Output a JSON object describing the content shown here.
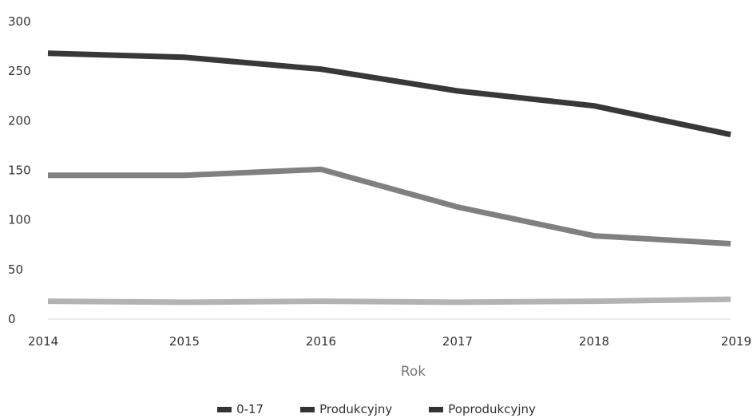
{
  "chart_data": {
    "type": "line",
    "x": [
      "2014",
      "2015",
      "2016",
      "2017",
      "2018",
      "2019"
    ],
    "xlabel": "Rok",
    "ylabel": "",
    "title": "",
    "ylim": [
      0,
      300
    ],
    "yticks": [
      0,
      50,
      100,
      150,
      200,
      250,
      300
    ],
    "grid": false,
    "legend_position": "bottom",
    "series": [
      {
        "name": "0-17",
        "color": "#b3b3b3",
        "values": [
          18,
          17,
          18,
          17,
          18,
          20
        ]
      },
      {
        "name": "Produkcyjny",
        "color": "#808080",
        "values": [
          145,
          145,
          151,
          113,
          84,
          76
        ]
      },
      {
        "name": "Poprodukcyjny",
        "color": "#383838",
        "values": [
          268,
          264,
          252,
          230,
          215,
          186
        ]
      }
    ]
  }
}
